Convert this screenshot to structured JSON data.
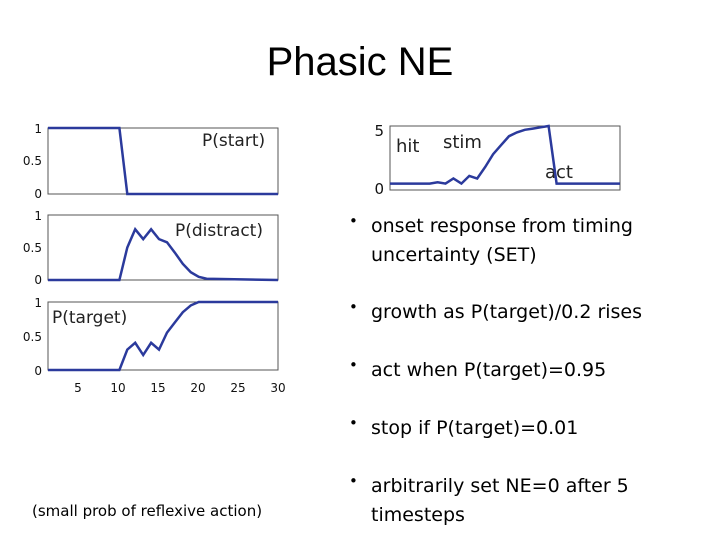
{
  "title": "Phasic NE",
  "plots": {
    "start": {
      "label": "P(start)",
      "yticks": [
        "1",
        "0.5",
        "0"
      ]
    },
    "distract": {
      "label": "P(distract)",
      "yticks": [
        "1",
        "0.5",
        "0"
      ]
    },
    "target": {
      "label": "P(target)",
      "yticks": [
        "1",
        "0.5",
        "0"
      ]
    },
    "xticks": [
      "5",
      "10",
      "15",
      "20",
      "25",
      "30"
    ],
    "ne": {
      "yticks": [
        "5",
        "0"
      ],
      "hit_label": "hit",
      "stim_label": "stim",
      "act_label": "act"
    }
  },
  "chart_data": [
    {
      "type": "line",
      "series": [
        {
          "name": "P(start)",
          "x": [
            1,
            10,
            11,
            30
          ],
          "y": [
            1,
            1,
            0,
            0
          ]
        }
      ],
      "ylim": [
        0,
        1
      ],
      "xlim": [
        1,
        30
      ]
    },
    {
      "type": "line",
      "series": [
        {
          "name": "P(distract)",
          "x": [
            1,
            10,
            11,
            12,
            13,
            14,
            15,
            16,
            17,
            18,
            19,
            20,
            21,
            30
          ],
          "y": [
            0,
            0,
            0.5,
            0.78,
            0.63,
            0.78,
            0.63,
            0.58,
            0.42,
            0.25,
            0.12,
            0.05,
            0.02,
            0
          ]
        }
      ],
      "ylim": [
        0,
        1
      ],
      "xlim": [
        1,
        30
      ]
    },
    {
      "type": "line",
      "series": [
        {
          "name": "P(target)",
          "x": [
            1,
            10,
            11,
            12,
            13,
            14,
            15,
            16,
            17,
            18,
            19,
            20,
            21,
            30
          ],
          "y": [
            0,
            0,
            0.3,
            0.4,
            0.22,
            0.4,
            0.3,
            0.55,
            0.7,
            0.85,
            0.95,
            1,
            1,
            1
          ]
        }
      ],
      "ylim": [
        0,
        1
      ],
      "xlim": [
        1,
        30
      ]
    },
    {
      "type": "line",
      "series": [
        {
          "name": "NE",
          "x": [
            1,
            6,
            7,
            8,
            9,
            10,
            11,
            12,
            13,
            14,
            15,
            16,
            17,
            18,
            19,
            20,
            21,
            22,
            23,
            24,
            30
          ],
          "y": [
            0.5,
            0.5,
            0.6,
            0.5,
            0.9,
            0.5,
            1.1,
            0.9,
            1.8,
            2.8,
            3.5,
            4.2,
            4.5,
            4.7,
            4.8,
            4.9,
            5.0,
            0.5,
            0.5,
            0.5,
            0.5
          ]
        }
      ],
      "ylim": [
        0,
        5
      ],
      "xlim": [
        1,
        30
      ]
    }
  ],
  "bullets": [
    {
      "text": "onset response from timing uncertainty (SET)"
    },
    {
      "text": "growth as P(target)/0.2 rises"
    },
    {
      "text": "act when P(target)=0.95"
    },
    {
      "text": "stop if P(target)=0.01"
    },
    {
      "text": "arbitrarily set NE=0 after 5 timesteps"
    }
  ],
  "note": "(small prob of reflexive action)",
  "colors": {
    "line": "#2b3a9c",
    "axis": "#333333"
  }
}
